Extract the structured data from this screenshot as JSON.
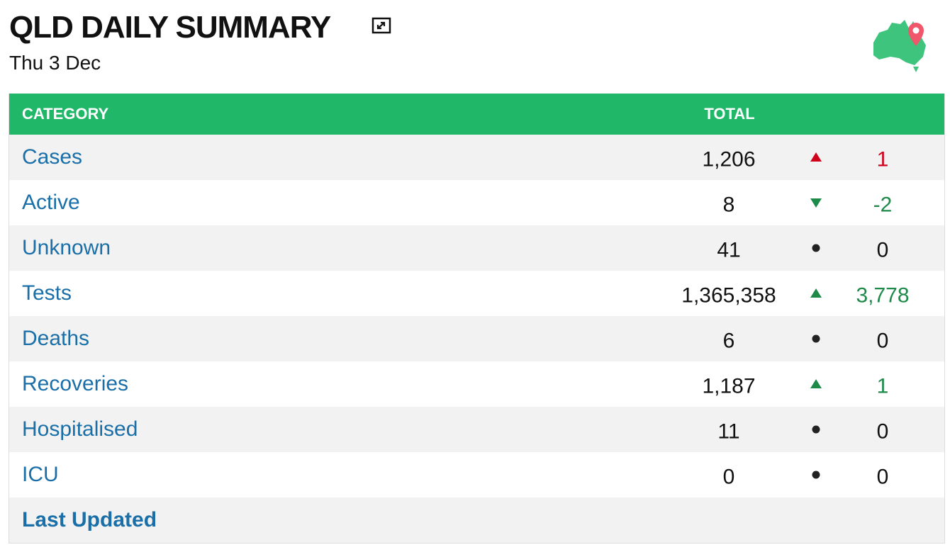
{
  "header": {
    "title": "QLD DAILY SUMMARY",
    "date": "Thu 3 Dec"
  },
  "table": {
    "columns": [
      "CATEGORY",
      "TOTAL"
    ],
    "rows": [
      {
        "label": "Cases",
        "total": "1,206",
        "trend": "up",
        "change": "1",
        "color": "#d0021b"
      },
      {
        "label": "Active",
        "total": "8",
        "trend": "down",
        "change": "-2",
        "color": "#1e8a4a"
      },
      {
        "label": "Unknown",
        "total": "41",
        "trend": "none",
        "change": "0",
        "color": "#111111"
      },
      {
        "label": "Tests",
        "total": "1,365,358",
        "trend": "up",
        "change": "3,778",
        "color": "#1e8a4a"
      },
      {
        "label": "Deaths",
        "total": "6",
        "trend": "none",
        "change": "0",
        "color": "#111111"
      },
      {
        "label": "Recoveries",
        "total": "1,187",
        "trend": "up",
        "change": "1",
        "color": "#1e8a4a"
      },
      {
        "label": "Hospitalised",
        "total": "11",
        "trend": "none",
        "change": "0",
        "color": "#111111"
      },
      {
        "label": "ICU",
        "total": "0",
        "trend": "none",
        "change": "0",
        "color": "#111111"
      }
    ],
    "footer": "Last Updated"
  }
}
